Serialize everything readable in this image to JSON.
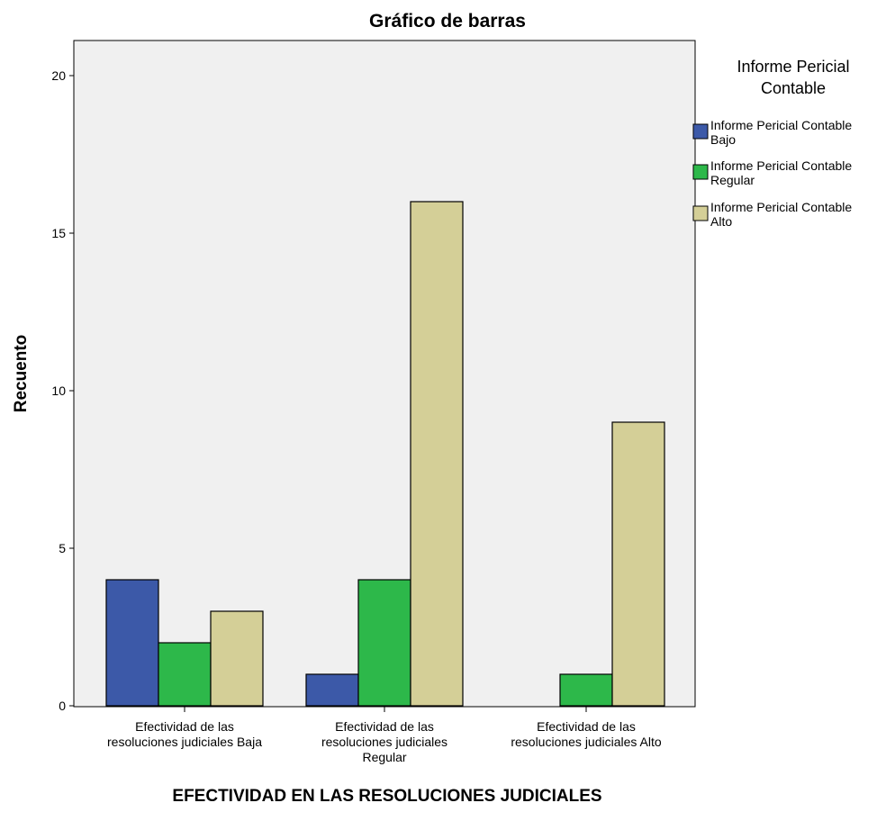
{
  "chart_data": {
    "type": "bar",
    "title": "Gráfico de barras",
    "xlabel": "EFECTIVIDAD EN LAS RESOLUCIONES JUDICIALES",
    "ylabel": "Recuento",
    "categories": [
      [
        "Efectividad de las",
        "resoluciones judiciales Baja"
      ],
      [
        "Efectividad de las",
        "resoluciones judiciales",
        "Regular"
      ],
      [
        "Efectividad de las",
        "resoluciones judiciales Alto"
      ]
    ],
    "series": [
      {
        "name": [
          "Informe Pericial Contable",
          "Bajo"
        ],
        "color": "#3c59a8",
        "values": [
          4,
          1,
          0
        ]
      },
      {
        "name": [
          "Informe Pericial Contable",
          "Regular"
        ],
        "color": "#2db84a",
        "values": [
          2,
          4,
          1
        ]
      },
      {
        "name": [
          "Informe Pericial Contable",
          "Alto"
        ],
        "color": "#d4cf97",
        "values": [
          3,
          16,
          9
        ]
      }
    ],
    "yticks": [
      0,
      5,
      10,
      15,
      20
    ],
    "ylim": [
      0,
      21
    ],
    "grid": false,
    "legend": {
      "title": [
        "Informe Pericial",
        "Contable"
      ],
      "position": "right"
    },
    "plot_background": "#f0f0f0",
    "bar_outline": "#000000"
  }
}
